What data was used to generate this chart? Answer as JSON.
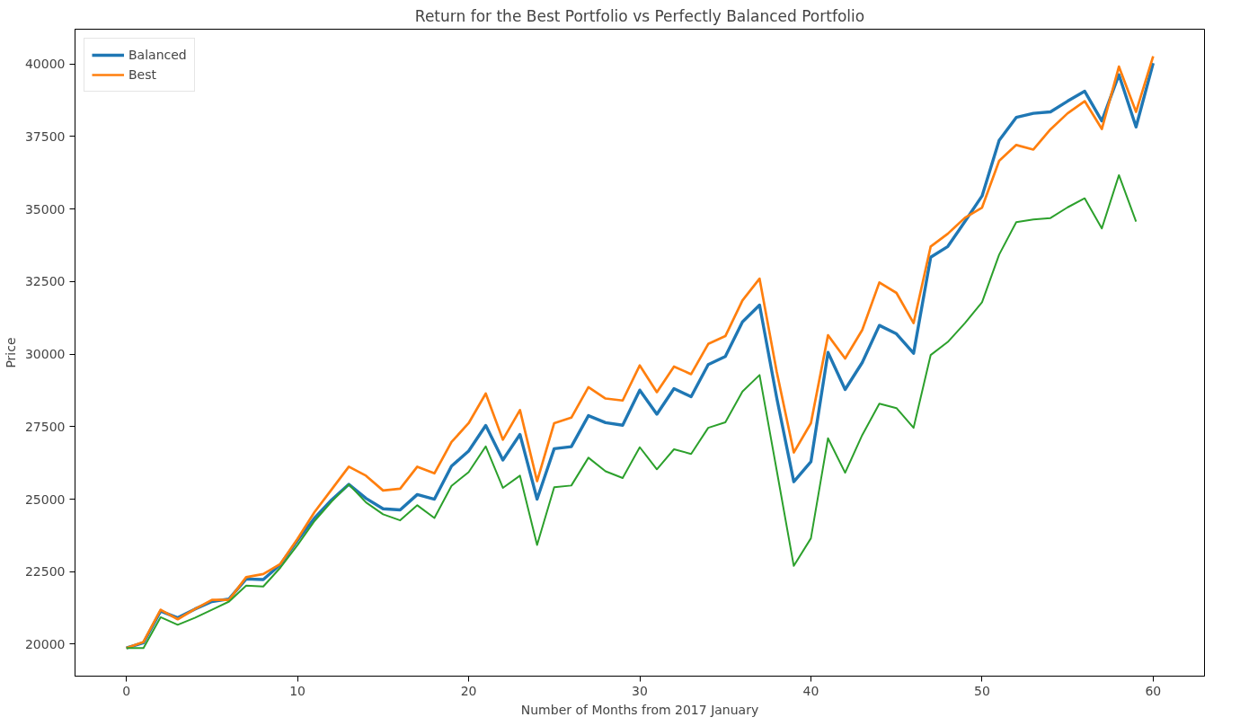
{
  "chart_data": {
    "type": "line",
    "title": "Return for the Best Portfolio vs Perfectly Balanced Portfolio",
    "xlabel": "Number of Months from 2017 January",
    "ylabel": "Price",
    "x": [
      0,
      1,
      2,
      3,
      4,
      5,
      6,
      7,
      8,
      9,
      10,
      11,
      12,
      13,
      14,
      15,
      16,
      17,
      18,
      19,
      20,
      21,
      22,
      23,
      24,
      25,
      26,
      27,
      28,
      29,
      30,
      31,
      32,
      33,
      34,
      35,
      36,
      37,
      38,
      39,
      40,
      41,
      42,
      43,
      44,
      45,
      46,
      47,
      48,
      49,
      50,
      51,
      52,
      53,
      54,
      55,
      56,
      57,
      58,
      59,
      60
    ],
    "series": [
      {
        "name": "Balanced",
        "color": "#1f77b4",
        "values": [
          19870,
          20050,
          21140,
          20910,
          21210,
          21470,
          21560,
          22250,
          22230,
          22750,
          23580,
          24350,
          24980,
          25510,
          25030,
          24670,
          24630,
          25160,
          25000,
          26140,
          26660,
          27540,
          26350,
          27230,
          25000,
          26740,
          26810,
          27880,
          27640,
          27550,
          28760,
          27930,
          28810,
          28530,
          29640,
          29920,
          31110,
          31690,
          28500,
          25600,
          26290,
          30060,
          28780,
          29710,
          30990,
          30700,
          30030,
          33340,
          33710,
          34570,
          35450,
          37370,
          38160,
          38300,
          38350,
          38720,
          39060,
          38040,
          39630,
          37830,
          40030
        ]
      },
      {
        "name": "Best",
        "color": "#ff7f0e",
        "values": [
          19870,
          20080,
          21190,
          20860,
          21210,
          21530,
          21530,
          22310,
          22420,
          22770,
          23630,
          24560,
          25340,
          26120,
          25810,
          25300,
          25360,
          26120,
          25890,
          26970,
          27620,
          28640,
          27050,
          28070,
          25620,
          27620,
          27810,
          28860,
          28470,
          28400,
          29610,
          28690,
          29570,
          29310,
          30350,
          30620,
          31850,
          32600,
          29400,
          26610,
          27620,
          30650,
          29850,
          30830,
          32470,
          32110,
          31070,
          33710,
          34150,
          34700,
          35050,
          36660,
          37210,
          37050,
          37750,
          38300,
          38720,
          37760,
          39910,
          38350,
          40270
        ]
      },
      {
        "color": "#2ca02c",
        "values": [
          19870,
          19870,
          20930,
          20670,
          20910,
          21190,
          21470,
          22020,
          21990,
          22640,
          23420,
          24250,
          24920,
          25510,
          24890,
          24480,
          24270,
          24790,
          24350,
          25460,
          25930,
          26820,
          25390,
          25810,
          23420,
          25410,
          25470,
          26430,
          25960,
          25730,
          26790,
          26030,
          26720,
          26560,
          27460,
          27650,
          28710,
          29280,
          26000,
          22700,
          23650,
          27100,
          25910,
          27210,
          28290,
          28140,
          27460,
          29970,
          30420,
          31070,
          31790,
          33430,
          34550,
          34640,
          34690,
          35060,
          35370,
          34330,
          36170,
          34570,
          null
        ]
      }
    ],
    "xlim": [
      -3,
      63
    ],
    "ylim": [
      18900,
      41200
    ],
    "xticks": [
      0,
      10,
      20,
      30,
      40,
      50,
      60
    ],
    "yticks": [
      20000,
      22500,
      25000,
      27500,
      30000,
      32500,
      35000,
      37500,
      40000
    ],
    "grid": false,
    "legend": "top left"
  }
}
